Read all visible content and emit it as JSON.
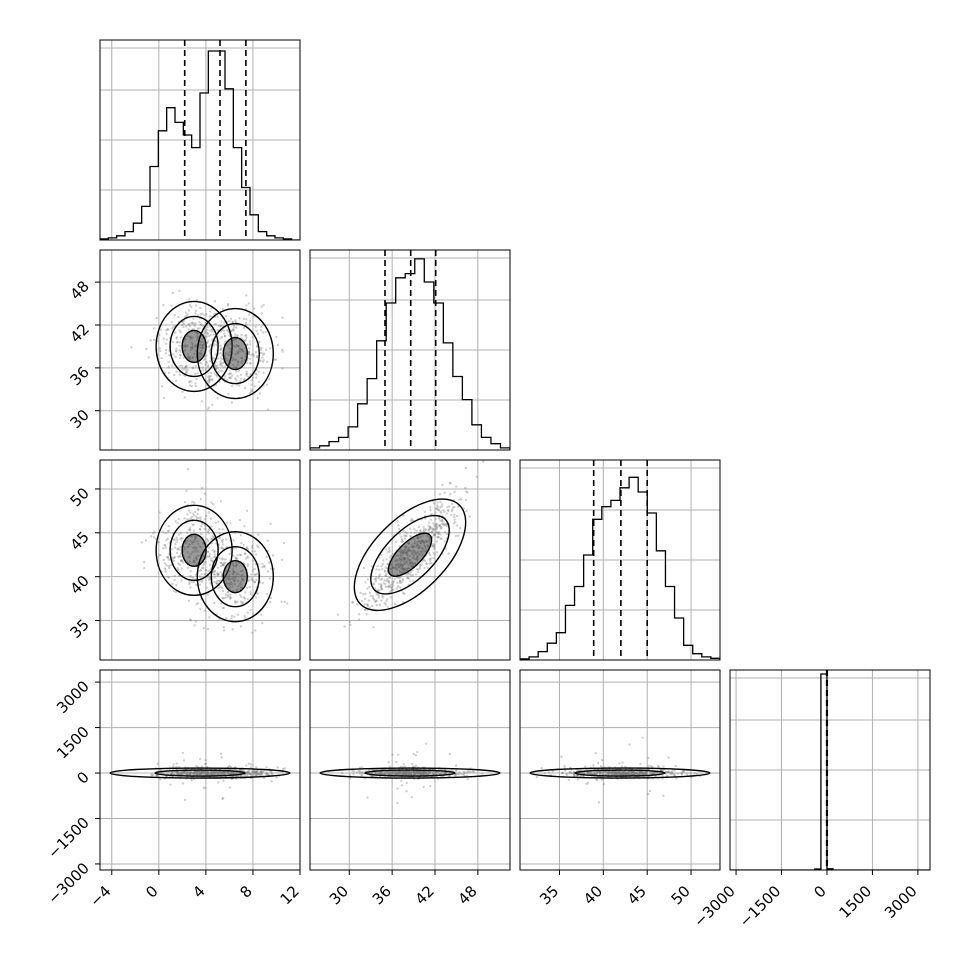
{
  "chart_data": {
    "type": "corner",
    "grid": true,
    "parameters": [
      {
        "range": [
          -5,
          12
        ],
        "ticks": [
          -4,
          0,
          4,
          8,
          12
        ],
        "tick_labels": [
          "−4",
          "0",
          "4",
          "8",
          "12"
        ],
        "quantiles": [
          2.2,
          5.2,
          7.4
        ]
      },
      {
        "range": [
          24.5,
          52.5
        ],
        "ticks": [
          30,
          36,
          42,
          48
        ],
        "tick_labels": [
          "30",
          "36",
          "42",
          "48"
        ],
        "quantiles": [
          35.0,
          38.6,
          42.1
        ]
      },
      {
        "range": [
          30.5,
          53.3
        ],
        "ticks": [
          35,
          40,
          45,
          50
        ],
        "tick_labels": [
          "35",
          "40",
          "45",
          "50"
        ],
        "quantiles": [
          38.9,
          42.0,
          45.0
        ]
      },
      {
        "range": [
          -3200,
          3400
        ],
        "ticks": [
          -3000,
          -1500,
          0,
          1500,
          3000
        ],
        "tick_labels": [
          "−3000",
          "−1500",
          "0",
          "1500",
          "3000"
        ],
        "quantiles": [
          -10,
          0,
          10
        ]
      }
    ],
    "histograms": [
      [
        0.005,
        0.01,
        0.02,
        0.04,
        0.08,
        0.16,
        0.35,
        0.52,
        0.63,
        0.56,
        0.5,
        0.44,
        0.7,
        0.9,
        0.9,
        0.72,
        0.44,
        0.25,
        0.12,
        0.04,
        0.02,
        0.01,
        0.005,
        0
      ],
      [
        0.01,
        0.02,
        0.04,
        0.06,
        0.11,
        0.22,
        0.34,
        0.52,
        0.7,
        0.82,
        0.84,
        0.91,
        0.8,
        0.7,
        0.51,
        0.35,
        0.24,
        0.12,
        0.06,
        0.03,
        0.01
      ],
      [
        0.005,
        0.015,
        0.04,
        0.08,
        0.13,
        0.26,
        0.35,
        0.5,
        0.67,
        0.73,
        0.76,
        0.82,
        0.87,
        0.8,
        0.7,
        0.52,
        0.35,
        0.2,
        0.07,
        0.03,
        0.015,
        0.008
      ],
      [
        0.0,
        0.005,
        0.98,
        0.006,
        0.0
      ]
    ],
    "hist4_x": [
      -300,
      -100,
      100,
      300
    ],
    "modes": [
      {
        "x": 3.0,
        "y": 39.0,
        "z": 43.0,
        "w": 0
      },
      {
        "x": 6.5,
        "y": 38.0,
        "z": 40.0,
        "w": 0
      }
    ],
    "pair_centers": {
      "yz": [
        38.5,
        42.5
      ]
    }
  }
}
